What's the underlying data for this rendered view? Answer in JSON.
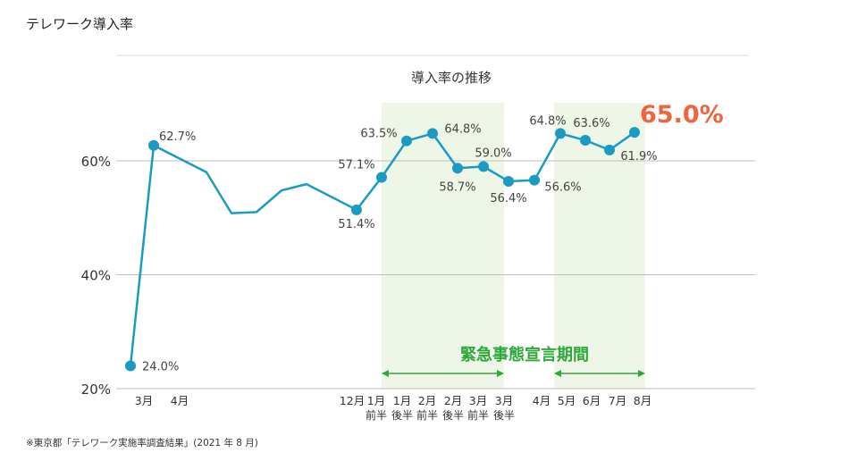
{
  "page_title": "テレワーク導入率",
  "source_note": "※東京都「テレワーク実施率調査結果」(2021 年 8 月)",
  "colors": {
    "line": "#1b9bc2",
    "band": "#eef6e8",
    "emergency": "#2ea83a",
    "highlight": "#f0643c",
    "grid": "#bdbdbd"
  },
  "chart_data": {
    "type": "line",
    "title": "導入率の推移",
    "xlabel": "",
    "ylabel": "",
    "ylim": [
      20,
      70
    ],
    "yticks": [
      "20%",
      "40%",
      "60%"
    ],
    "grid": "horizontal",
    "series": [
      {
        "values": [
          24.0,
          62.7,
          58.0,
          50.8,
          51.0,
          54.8,
          55.9,
          51.4,
          57.1,
          63.5,
          64.8,
          58.7,
          59.0,
          56.4,
          56.6,
          64.8,
          63.6,
          61.9,
          65.0
        ],
        "labels": [
          "24.0%",
          "62.7%",
          "",
          "",
          "",
          "",
          "",
          "51.4%",
          "57.1%",
          "63.5%",
          "64.8%",
          "58.7%",
          "59.0%",
          "56.4%",
          "56.6%",
          "64.8%",
          "63.6%",
          "61.9%",
          "65.0%"
        ],
        "markers": [
          true,
          true,
          false,
          false,
          false,
          false,
          false,
          true,
          true,
          true,
          true,
          true,
          true,
          true,
          true,
          true,
          true,
          true,
          true
        ]
      }
    ],
    "x_labels": [
      {
        "line1": "3月",
        "line2": ""
      },
      {
        "line1": "4月",
        "line2": ""
      },
      {
        "line1": "12月",
        "line2": ""
      },
      {
        "line1": "1月",
        "line2": "前半"
      },
      {
        "line1": "1月",
        "line2": "後半"
      },
      {
        "line1": "2月",
        "line2": "前半"
      },
      {
        "line1": "2月",
        "line2": "後半"
      },
      {
        "line1": "3月",
        "line2": "前半"
      },
      {
        "line1": "3月",
        "line2": "後半"
      },
      {
        "line1": "4月",
        "line2": ""
      },
      {
        "line1": "5月",
        "line2": ""
      },
      {
        "line1": "6月",
        "line2": ""
      },
      {
        "line1": "7月",
        "line2": ""
      },
      {
        "line1": "8月",
        "line2": ""
      }
    ],
    "annotation": "緊急事態宣言期間",
    "emergency_periods": [
      {
        "from": "1月 前半",
        "to": "3月 後半"
      },
      {
        "from": "5月",
        "to": "8月"
      }
    ]
  }
}
